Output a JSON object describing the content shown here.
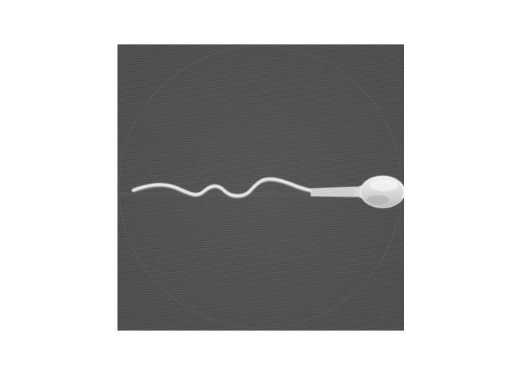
{
  "figure": {
    "subject": "sperm-cell",
    "background_color": "#ffffff",
    "image_background_color": "#565656",
    "cell_color": "#e6e6e6"
  }
}
